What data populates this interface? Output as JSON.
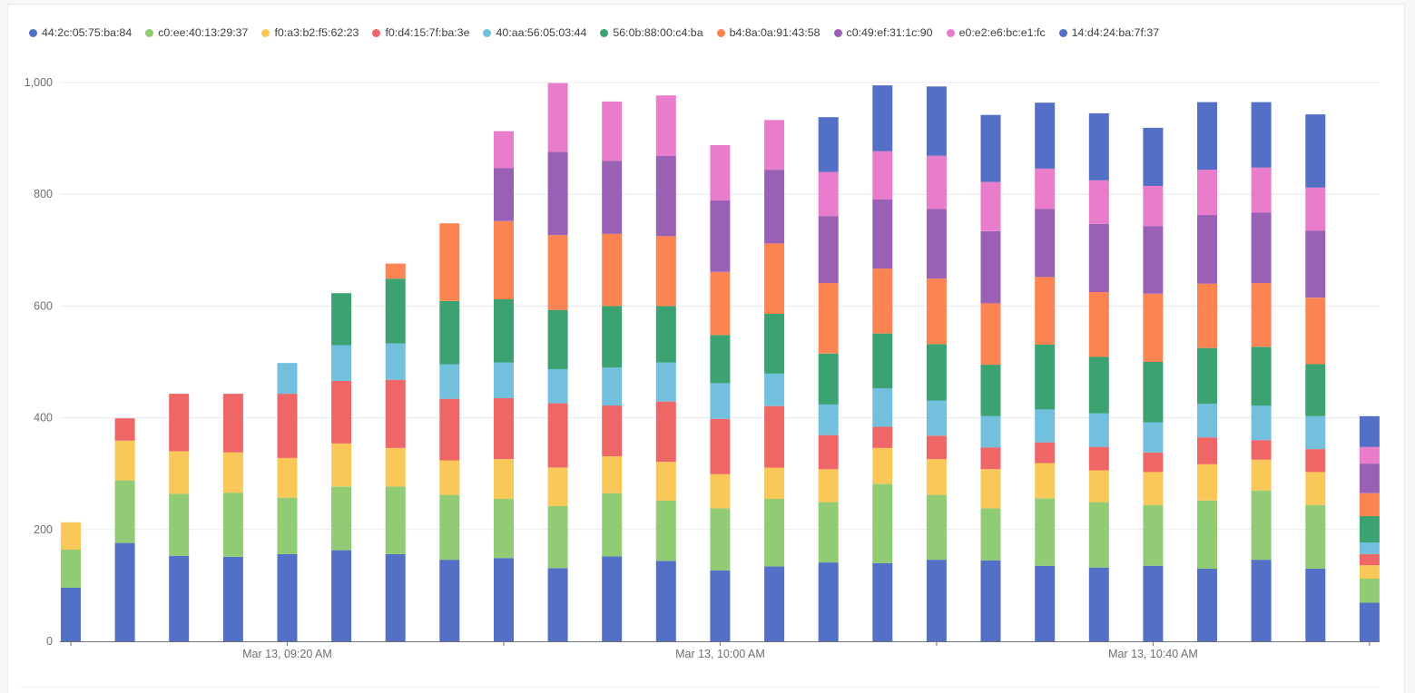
{
  "chart_data": {
    "type": "bar",
    "stacked": true,
    "title": "",
    "xlabel": "",
    "ylabel": "",
    "ylim": [
      0,
      1000
    ],
    "yticks": [
      0,
      200,
      400,
      600,
      800,
      1000
    ],
    "ytick_labels": [
      "0",
      "200",
      "400",
      "600",
      "800",
      "1,000"
    ],
    "grid": true,
    "legend_position": "top-left",
    "x": [
      "09:00",
      "09:05",
      "09:10",
      "09:15",
      "09:20",
      "09:25",
      "09:30",
      "09:35",
      "09:40",
      "09:45",
      "09:50",
      "09:55",
      "10:00",
      "10:05",
      "10:10",
      "10:15",
      "10:20",
      "10:25",
      "10:30",
      "10:35",
      "10:40",
      "10:45",
      "10:50",
      "10:55",
      "11:00"
    ],
    "xtick_positions": [
      "09:00",
      "09:20",
      "09:40",
      "10:00",
      "10:20",
      "10:40",
      "11:00"
    ],
    "xtick_labels": [
      "",
      "Mar 13, 09:20 AM",
      "",
      "Mar 13, 10:00 AM",
      "",
      "Mar 13, 10:40 AM",
      ""
    ],
    "series": [
      {
        "name": "44:2c:05:75:ba:84",
        "color": "#5470c6",
        "values": [
          96,
          176,
          153,
          151,
          156,
          163,
          156,
          146,
          149,
          131,
          152,
          144,
          127,
          134,
          141,
          140,
          146,
          145,
          135,
          132,
          135,
          130,
          146,
          130,
          69
        ]
      },
      {
        "name": "c0:ee:40:13:29:37",
        "color": "#91cc75",
        "values": [
          68,
          112,
          111,
          115,
          101,
          114,
          121,
          116,
          106,
          111,
          113,
          108,
          111,
          121,
          108,
          142,
          116,
          93,
          121,
          117,
          109,
          122,
          124,
          114,
          43
        ]
      },
      {
        "name": "f0:a3:b2:f5:62:23",
        "color": "#fac858",
        "values": [
          49,
          71,
          76,
          72,
          71,
          77,
          69,
          62,
          71,
          69,
          66,
          69,
          61,
          56,
          59,
          64,
          64,
          70,
          63,
          57,
          59,
          65,
          55,
          59,
          24
        ]
      },
      {
        "name": "f0:d4:15:7f:ba:3e",
        "color": "#ee6666",
        "values": [
          0,
          40,
          103,
          105,
          115,
          112,
          122,
          110,
          109,
          115,
          91,
          108,
          99,
          110,
          61,
          38,
          42,
          39,
          37,
          42,
          35,
          48,
          35,
          41,
          20
        ]
      },
      {
        "name": "40:aa:56:05:03:44",
        "color": "#73c0de",
        "values": [
          0,
          0,
          0,
          0,
          55,
          64,
          65,
          62,
          64,
          61,
          68,
          70,
          64,
          58,
          55,
          69,
          63,
          56,
          59,
          60,
          54,
          60,
          62,
          59,
          21
        ]
      },
      {
        "name": "56:0b:88:00:c4:ba",
        "color": "#3ba272",
        "values": [
          0,
          0,
          0,
          0,
          0,
          93,
          116,
          113,
          113,
          106,
          110,
          101,
          86,
          107,
          91,
          98,
          101,
          92,
          116,
          101,
          108,
          100,
          105,
          93,
          47
        ]
      },
      {
        "name": "b4:8a:0a:91:43:58",
        "color": "#fc8452",
        "values": [
          0,
          0,
          0,
          0,
          0,
          0,
          27,
          139,
          140,
          134,
          129,
          125,
          113,
          126,
          126,
          116,
          117,
          110,
          121,
          116,
          122,
          115,
          114,
          119,
          41
        ]
      },
      {
        "name": "c0:49:ef:31:1c:90",
        "color": "#9a60b4",
        "values": [
          0,
          0,
          0,
          0,
          0,
          0,
          0,
          0,
          95,
          149,
          131,
          144,
          128,
          132,
          120,
          124,
          125,
          129,
          122,
          122,
          121,
          123,
          126,
          120,
          53
        ]
      },
      {
        "name": "e0:e2:e6:bc:e1:fc",
        "color": "#ea7ccc",
        "values": [
          0,
          0,
          0,
          0,
          0,
          0,
          0,
          0,
          66,
          123,
          106,
          108,
          99,
          89,
          79,
          86,
          95,
          88,
          72,
          78,
          72,
          81,
          81,
          77,
          30
        ]
      },
      {
        "name": "14:d4:24:ba:7f:37",
        "color": "#5470c6",
        "values": [
          0,
          0,
          0,
          0,
          0,
          0,
          0,
          0,
          0,
          0,
          0,
          0,
          0,
          0,
          98,
          118,
          124,
          120,
          118,
          120,
          104,
          121,
          117,
          131,
          55
        ]
      }
    ]
  }
}
